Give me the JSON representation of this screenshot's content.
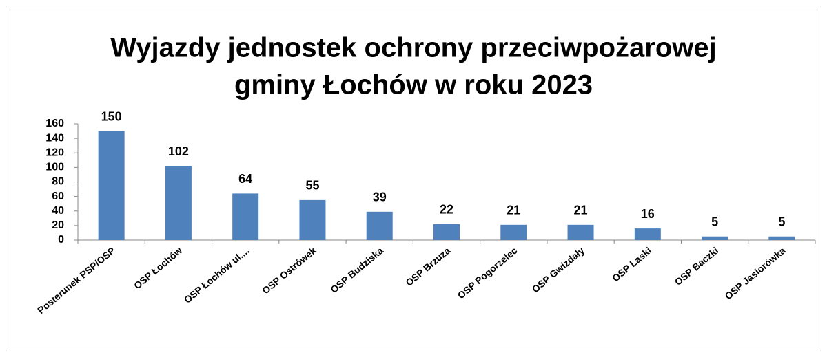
{
  "chart_data": {
    "type": "bar",
    "title": [
      "Wyjazdy jednostek ochrony przeciwpożarowej",
      "gminy Łochów w roku 2023"
    ],
    "categories": [
      "Posterunek PSP/OSP",
      "OSP Łochów",
      "OSP Łochów ul....",
      "OSP Ostrówek",
      "OSP Budziska",
      "OSP Brzuza",
      "OSP Pogorzelec",
      "OSP Gwizdały",
      "OSP Laski",
      "OSP Baczki",
      "OSP Jasiorówka"
    ],
    "values": [
      150,
      102,
      64,
      55,
      39,
      22,
      21,
      21,
      16,
      5,
      5
    ],
    "color": "#4f81bd",
    "ylim": [
      0,
      160
    ],
    "yticks": [
      0,
      20,
      40,
      60,
      80,
      100,
      120,
      140,
      160
    ],
    "grid": false
  }
}
